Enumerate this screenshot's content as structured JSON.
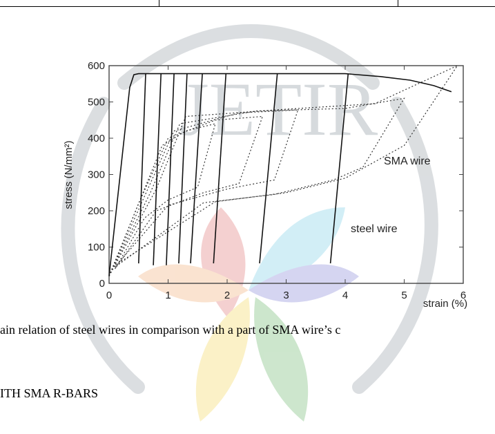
{
  "figure": {
    "caption": "ain relation of steel wires in comparison with a part of SMA wire’s c",
    "annotation_sma": "SMA wire",
    "annotation_steel": "steel wire"
  },
  "section_heading": "ITH SMA R-BARS",
  "watermark": {
    "text": "JETIR",
    "colors": [
      "#9aa0a6",
      "#e8a0a0",
      "#a0d8e8",
      "#f5d58a",
      "#9ec89e",
      "#b8b8e8"
    ]
  },
  "chart_data": {
    "type": "line",
    "title": "",
    "xlabel": "strain (%)",
    "ylabel": "stress (N/mm²)",
    "xlim": [
      0,
      6
    ],
    "ylim": [
      0,
      600
    ],
    "xticks": [
      0,
      1,
      2,
      3,
      4,
      5,
      6
    ],
    "yticks": [
      0,
      100,
      200,
      300,
      400,
      500,
      600
    ],
    "grid": false,
    "series": [
      {
        "name": "steel wire",
        "style": "solid",
        "color": "#111111",
        "points": [
          [
            0,
            20
          ],
          [
            0.35,
            540
          ],
          [
            0.42,
            575
          ],
          [
            0.5,
            578
          ],
          [
            4.0,
            578
          ],
          [
            4.6,
            570
          ],
          [
            5.1,
            560
          ],
          [
            5.5,
            545
          ],
          [
            5.8,
            528
          ]
        ],
        "unloading_lines": [
          [
            [
              0.62,
              578
            ],
            [
              0.5,
              55
            ]
          ],
          [
            [
              0.88,
              578
            ],
            [
              0.75,
              50
            ]
          ],
          [
            [
              1.1,
              578
            ],
            [
              0.97,
              50
            ]
          ],
          [
            [
              1.32,
              578
            ],
            [
              1.18,
              55
            ]
          ],
          [
            [
              1.58,
              578
            ],
            [
              1.38,
              55
            ]
          ],
          [
            [
              1.98,
              578
            ],
            [
              1.77,
              55
            ]
          ],
          [
            [
              2.85,
              578
            ],
            [
              2.55,
              55
            ]
          ],
          [
            [
              4.05,
              578
            ],
            [
              3.75,
              55
            ]
          ]
        ]
      },
      {
        "name": "SMA wire",
        "style": "dotted",
        "color": "#333333",
        "loops": [
          [
            [
              0,
              20
            ],
            [
              0.45,
              200
            ],
            [
              0.9,
              380
            ],
            [
              1.3,
              420
            ],
            [
              1.8,
              440
            ],
            [
              1.5,
              265
            ],
            [
              1.0,
              230
            ],
            [
              0.6,
              180
            ],
            [
              0.1,
              40
            ]
          ],
          [
            [
              0,
              20
            ],
            [
              0.5,
              220
            ],
            [
              1.0,
              400
            ],
            [
              1.8,
              450
            ],
            [
              2.6,
              460
            ],
            [
              2.2,
              275
            ],
            [
              1.6,
              250
            ],
            [
              0.8,
              200
            ],
            [
              0.1,
              40
            ]
          ],
          [
            [
              0,
              20
            ],
            [
              0.6,
              240
            ],
            [
              1.1,
              420
            ],
            [
              2.2,
              470
            ],
            [
              3.2,
              478
            ],
            [
              2.8,
              285
            ],
            [
              2.0,
              260
            ],
            [
              1.0,
              215
            ],
            [
              0.1,
              45
            ]
          ],
          [
            [
              0,
              20
            ],
            [
              0.7,
              250
            ],
            [
              1.2,
              440
            ],
            [
              2.5,
              475
            ],
            [
              4.0,
              482
            ],
            [
              5.0,
              510
            ],
            [
              4.3,
              320
            ],
            [
              3.8,
              285
            ],
            [
              2.8,
              245
            ],
            [
              1.6,
              222
            ],
            [
              0.1,
              45
            ]
          ],
          [
            [
              0,
              20
            ],
            [
              0.8,
              260
            ],
            [
              1.3,
              460
            ],
            [
              3.0,
              480
            ],
            [
              4.5,
              495
            ],
            [
              5.9,
              600
            ],
            [
              5.0,
              380
            ],
            [
              4.0,
              290
            ],
            [
              3.0,
              250
            ],
            [
              1.8,
              225
            ],
            [
              0.1,
              50
            ]
          ]
        ]
      }
    ]
  }
}
